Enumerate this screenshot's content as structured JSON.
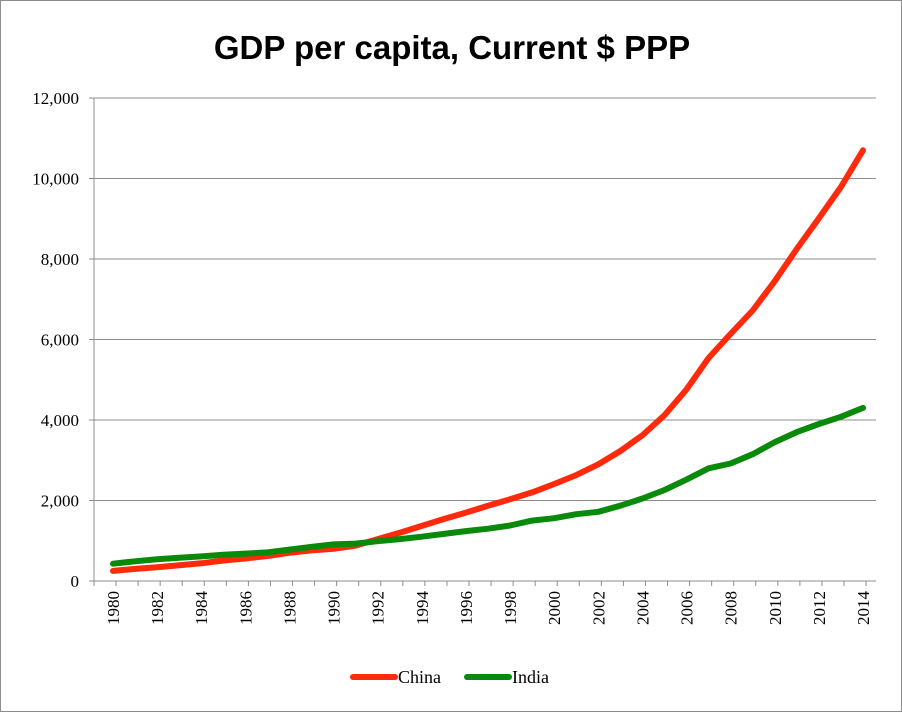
{
  "chart_data": {
    "type": "line",
    "title": "GDP per capita, Current $ PPP",
    "xlabel": "",
    "ylabel": "",
    "x": [
      1980,
      1981,
      1982,
      1983,
      1984,
      1985,
      1986,
      1987,
      1988,
      1989,
      1990,
      1991,
      1992,
      1993,
      1994,
      1995,
      1996,
      1997,
      1998,
      1999,
      2000,
      2001,
      2002,
      2003,
      2004,
      2005,
      2006,
      2007,
      2008,
      2009,
      2010,
      2011,
      2012,
      2013,
      2014
    ],
    "x_tick_labels": [
      "1980",
      "1982",
      "1984",
      "1986",
      "1988",
      "1990",
      "1992",
      "1994",
      "1996",
      "1998",
      "2000",
      "2002",
      "2004",
      "2006",
      "2008",
      "2010",
      "2012",
      "2014"
    ],
    "y_tick_labels": [
      "0",
      "2,000",
      "4,000",
      "6,000",
      "8,000",
      "10,000",
      "12,000"
    ],
    "ylim": [
      0,
      12000
    ],
    "grid": "horizontal",
    "legend": "bottom",
    "series": [
      {
        "name": "China",
        "color": "#ff2a0c",
        "values": [
          250,
          300,
          340,
          390,
          440,
          510,
          560,
          620,
          700,
          760,
          800,
          880,
          1040,
          1200,
          1370,
          1540,
          1700,
          1870,
          2030,
          2200,
          2410,
          2630,
          2900,
          3230,
          3620,
          4120,
          4760,
          5540,
          6140,
          6720,
          7450,
          8250,
          9010,
          9790,
          10700
        ]
      },
      {
        "name": "India",
        "color": "#0a8a0a",
        "values": [
          430,
          490,
          540,
          580,
          610,
          650,
          680,
          710,
          780,
          850,
          910,
          930,
          990,
          1040,
          1100,
          1170,
          1240,
          1300,
          1380,
          1500,
          1560,
          1660,
          1720,
          1870,
          2050,
          2260,
          2520,
          2800,
          2920,
          3150,
          3450,
          3700,
          3900,
          4080,
          4300
        ]
      }
    ]
  }
}
